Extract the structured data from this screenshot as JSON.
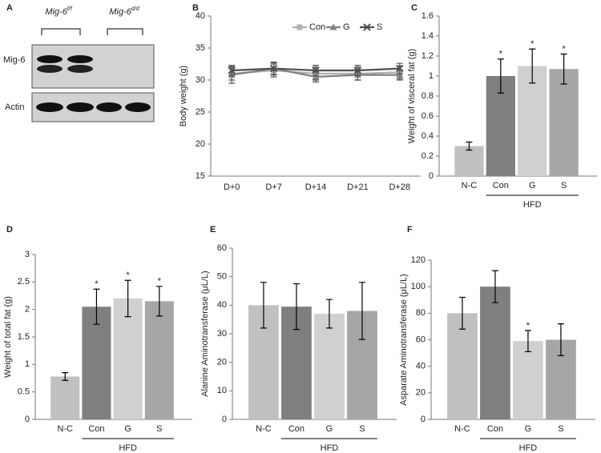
{
  "blot": {
    "panel": "A",
    "lanes": [
      {
        "gene": "Mig-6",
        "genotype": "f/f"
      },
      {
        "gene": "Mig-6",
        "genotype": "d/d"
      }
    ],
    "rows": [
      "Mig-6",
      "Actin"
    ]
  },
  "chart_data": [
    {
      "type": "line",
      "panel": "B",
      "y_label": "Body weight (g)",
      "categories": [
        "D+0",
        "D+7",
        "D+14",
        "D+21",
        "D+28"
      ],
      "ylim": [
        15,
        40
      ],
      "yticks": [
        15,
        20,
        25,
        30,
        35,
        40
      ],
      "series": [
        {
          "name": "Con",
          "color": "#b0b0b0",
          "marker": "square",
          "values": [
            31,
            31.5,
            31,
            31,
            31.2
          ],
          "errors": [
            1,
            1,
            1,
            1,
            1
          ]
        },
        {
          "name": "G",
          "color": "#808080",
          "marker": "triangle",
          "values": [
            30.8,
            31.8,
            30.5,
            30.8,
            30.8
          ],
          "errors": [
            1.3,
            0.9,
            0.8,
            0.8,
            0.8
          ]
        },
        {
          "name": "S",
          "color": "#505050",
          "marker": "x",
          "values": [
            31.5,
            31.8,
            31.5,
            31.5,
            31.8
          ],
          "errors": [
            0.8,
            1,
            0.8,
            0.8,
            0.8
          ]
        }
      ]
    },
    {
      "type": "bar",
      "panel": "C",
      "y_label": "Weight of visceral fat (g)",
      "categories": [
        "N-C",
        "Con",
        "G",
        "S"
      ],
      "groups": [
        {
          "label": "HFD",
          "categories": [
            "Con",
            "G",
            "S"
          ]
        }
      ],
      "values": [
        0.3,
        1.0,
        1.1,
        1.07
      ],
      "errors": [
        0.04,
        0.17,
        0.17,
        0.15
      ],
      "significance": [
        null,
        "*",
        "*",
        "*"
      ],
      "colors": [
        "#c0c0c0",
        "#7f7f7f",
        "#d0d0d0",
        "#a6a6a6"
      ],
      "ylim": [
        0,
        1.6
      ],
      "yticks": [
        0,
        0.2,
        0.4,
        0.6,
        0.8,
        1,
        1.2,
        1.4,
        1.6
      ]
    },
    {
      "type": "bar",
      "panel": "D",
      "y_label": "Weight of total fat (g)",
      "categories": [
        "N-C",
        "Con",
        "G",
        "S"
      ],
      "groups": [
        {
          "label": "HFD",
          "categories": [
            "Con",
            "G",
            "S"
          ]
        }
      ],
      "values": [
        0.78,
        2.05,
        2.2,
        2.15
      ],
      "errors": [
        0.07,
        0.32,
        0.33,
        0.27
      ],
      "significance": [
        null,
        "*",
        "*",
        "*"
      ],
      "colors": [
        "#c0c0c0",
        "#7f7f7f",
        "#d0d0d0",
        "#a6a6a6"
      ],
      "ylim": [
        0,
        3
      ],
      "yticks": [
        0,
        0.5,
        1,
        1.5,
        2,
        2.5,
        3
      ]
    },
    {
      "type": "bar",
      "panel": "E",
      "y_label": "Alanine Aminotransferase (μL/L)",
      "categories": [
        "N-C",
        "Con",
        "G",
        "S"
      ],
      "groups": [
        {
          "label": "HFD",
          "categories": [
            "Con",
            "G",
            "S"
          ]
        }
      ],
      "values": [
        40,
        39.5,
        37,
        38
      ],
      "errors": [
        8,
        8,
        5,
        10
      ],
      "colors": [
        "#c0c0c0",
        "#7f7f7f",
        "#d0d0d0",
        "#a6a6a6"
      ],
      "ylim": [
        0,
        60
      ],
      "yticks": [
        0,
        10,
        20,
        30,
        40,
        50,
        60
      ]
    },
    {
      "type": "bar",
      "panel": "F",
      "y_label": "Asparate Aminotransferase (μL/L)",
      "categories": [
        "N-C",
        "Con",
        "G",
        "S"
      ],
      "groups": [
        {
          "label": "HFD",
          "categories": [
            "Con",
            "G",
            "S"
          ]
        }
      ],
      "values": [
        80,
        100,
        59,
        60
      ],
      "errors": [
        12,
        12,
        8,
        12
      ],
      "significance": [
        null,
        null,
        "*",
        null
      ],
      "colors": [
        "#c0c0c0",
        "#7f7f7f",
        "#d0d0d0",
        "#a6a6a6"
      ],
      "ylim": [
        0,
        120
      ],
      "yticks": [
        0,
        20,
        40,
        60,
        80,
        100,
        120
      ]
    }
  ]
}
